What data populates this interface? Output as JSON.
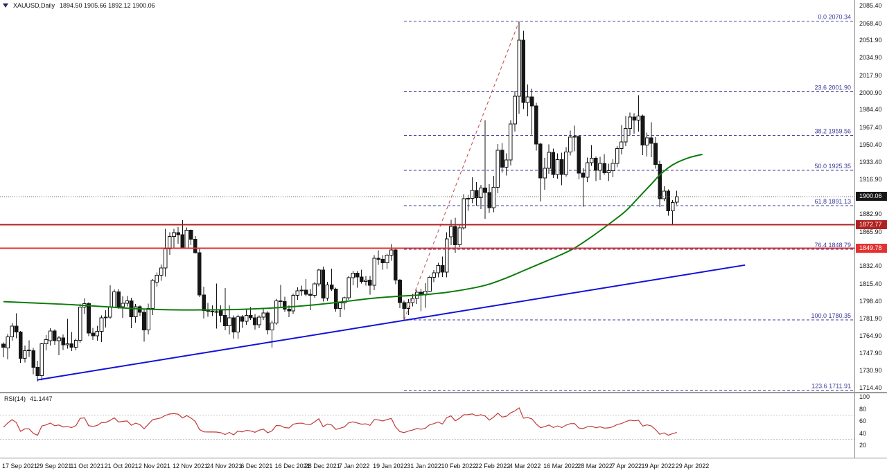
{
  "window": {
    "symbol_label": "XAUUSD,Daily",
    "ohlc_label": "1894.50 1905.66 1892.12 1900.06"
  },
  "colors": {
    "background": "#ffffff",
    "candle_bull": "#ffffff",
    "candle_bear": "#161616",
    "ma": "#0c7c0c",
    "trendline": "#1212d8",
    "fib": "#3b3b9d",
    "fib_base": "#c24d4d",
    "hline_dark_red": "#b02020",
    "hline_red": "#e43030",
    "bid_tag": "#161616",
    "rsi": "#c13a3a"
  },
  "chart_data": {
    "type": "candlestick",
    "symbol": "XAUUSD",
    "timeframe": "Daily",
    "title": "XAUUSD,Daily 1894.50 1905.66 1892.12 1900.06",
    "last_ohlc": {
      "open": "1894.50",
      "high": "1905.66",
      "low": "1892.12",
      "close": "1900.06"
    },
    "y_range": {
      "top": 2090.9,
      "bottom": 1710.3
    },
    "y_axis_labels": [
      "2085.40",
      "2068.40",
      "2051.90",
      "2034.90",
      "2017.90",
      "2000.90",
      "1984.40",
      "1967.40",
      "1950.40",
      "1933.40",
      "1916.90",
      "1882.90",
      "1865.90",
      "1832.40",
      "1815.40",
      "1798.40",
      "1781.90",
      "1764.90",
      "1747.90",
      "1730.90",
      "1714.40"
    ],
    "price_tags": [
      {
        "text": "1900.06",
        "price": 1900.06,
        "bg": "#161616",
        "name": "bid-price-tag"
      },
      {
        "text": "1872.77",
        "price": 1872.77,
        "bg": "#b02020",
        "name": "hline-1872-price-tag"
      },
      {
        "text": "1849.78",
        "price": 1849.78,
        "bg": "#e43030",
        "name": "hline-1849-price-tag"
      }
    ],
    "bid_line": {
      "price": 1900.06
    },
    "h_lines": [
      {
        "price": 1872.77,
        "color": "#b02020",
        "width": 2,
        "name": "horizontal-line-1872"
      },
      {
        "price": 1849.78,
        "color": "#e43030",
        "width": 2,
        "name": "horizontal-line-1849"
      }
    ],
    "fibonacci": {
      "color": "#3b3b9d",
      "base_color": "#c24d4d",
      "start_index": 94,
      "base_line": {
        "from": {
          "index": 94,
          "price": 1780.35
        },
        "to": {
          "index": 121,
          "price": 2070.34
        }
      },
      "levels": [
        {
          "label": "0.0 2070.34",
          "price": 2070.34
        },
        {
          "label": "23.6 2001.90",
          "price": 2001.9
        },
        {
          "label": "38.2 1959.56",
          "price": 1959.56
        },
        {
          "label": "50.0 1925.35",
          "price": 1925.35
        },
        {
          "label": "61.8 1891.13",
          "price": 1891.13
        },
        {
          "label": "76.4 1848.79",
          "price": 1848.79
        },
        {
          "label": "100.0 1780.35",
          "price": 1780.35
        },
        {
          "label": "123.6 1711.91",
          "price": 1711.91
        }
      ]
    },
    "trendline": {
      "color": "#1212d8",
      "from": {
        "index": 8,
        "price": 1722.0
      },
      "to": {
        "index": 174,
        "price": 1833.5
      }
    },
    "ma_line": {
      "color": "#0c7c0c",
      "points": [
        [
          0,
          1798
        ],
        [
          8,
          1796.5
        ],
        [
          16,
          1795
        ],
        [
          24,
          1793
        ],
        [
          32,
          1791
        ],
        [
          40,
          1790
        ],
        [
          48,
          1790
        ],
        [
          56,
          1790.5
        ],
        [
          64,
          1792
        ],
        [
          72,
          1794.5
        ],
        [
          80,
          1798
        ],
        [
          86,
          1801
        ],
        [
          92,
          1803
        ],
        [
          98,
          1804.5
        ],
        [
          104,
          1807
        ],
        [
          110,
          1811
        ],
        [
          114,
          1815
        ],
        [
          118,
          1821
        ],
        [
          122,
          1828
        ],
        [
          126,
          1835
        ],
        [
          130,
          1842
        ],
        [
          134,
          1850
        ],
        [
          138,
          1861
        ],
        [
          142,
          1873
        ],
        [
          146,
          1886
        ],
        [
          149,
          1899
        ],
        [
          152,
          1912
        ],
        [
          154,
          1921
        ],
        [
          156,
          1928
        ],
        [
          158,
          1933
        ],
        [
          161,
          1938
        ],
        [
          164,
          1941
        ]
      ]
    },
    "x_axis_labels": [
      {
        "label": "17 Sep 2021",
        "index": 0
      },
      {
        "label": "29 Sep 2021",
        "index": 8
      },
      {
        "label": "11 Oct 2021",
        "index": 16
      },
      {
        "label": "21 Oct 2021",
        "index": 24
      },
      {
        "label": "2 Nov 2021",
        "index": 32
      },
      {
        "label": "12 Nov 2021",
        "index": 40
      },
      {
        "label": "24 Nov 2021",
        "index": 48
      },
      {
        "label": "6 Dec 2021",
        "index": 56
      },
      {
        "label": "16 Dec 2021",
        "index": 64
      },
      {
        "label": "28 Dec 2021",
        "index": 71
      },
      {
        "label": "7 Jan 2022",
        "index": 79
      },
      {
        "label": "19 Jan 2022",
        "index": 87
      },
      {
        "label": "31 Jan 2022",
        "index": 95
      },
      {
        "label": "10 Feb 2022",
        "index": 103
      },
      {
        "label": "22 Feb 2022",
        "index": 111
      },
      {
        "label": "4 Mar 2022",
        "index": 119
      },
      {
        "label": "16 Mar 2022",
        "index": 127
      },
      {
        "label": "28 Mar 2022",
        "index": 135
      },
      {
        "label": "7 Apr 2022",
        "index": 143
      },
      {
        "label": "19 Apr 2022",
        "index": 150
      },
      {
        "label": "29 Apr 2022",
        "index": 158
      }
    ],
    "candles": [
      [
        1756.8,
        1758.4,
        1743.9,
        1753.6
      ],
      [
        1753.0,
        1766.3,
        1741.8,
        1763.8
      ],
      [
        1763.8,
        1777.1,
        1760.2,
        1774.3
      ],
      [
        1774.3,
        1786.5,
        1762.3,
        1768.4
      ],
      [
        1768.4,
        1769.5,
        1738.5,
        1742.9
      ],
      [
        1742.9,
        1755.3,
        1738.9,
        1750.4
      ],
      [
        1751.0,
        1760.3,
        1744.2,
        1750.2
      ],
      [
        1750.2,
        1752.9,
        1727.4,
        1734.2
      ],
      [
        1734.2,
        1740.5,
        1720.5,
        1726.0
      ],
      [
        1726.0,
        1758.0,
        1721.3,
        1756.9
      ],
      [
        1756.9,
        1765.4,
        1750.8,
        1761.0
      ],
      [
        1760.0,
        1772.0,
        1755.5,
        1769.6
      ],
      [
        1769.6,
        1771.2,
        1756.0,
        1759.9
      ],
      [
        1759.9,
        1764.9,
        1745.9,
        1762.7
      ],
      [
        1762.7,
        1766.1,
        1751.1,
        1755.9
      ],
      [
        1755.9,
        1781.4,
        1752.2,
        1757.1
      ],
      [
        1757.0,
        1768.4,
        1749.9,
        1753.8
      ],
      [
        1753.8,
        1762.0,
        1750.5,
        1760.4
      ],
      [
        1760.4,
        1796.0,
        1758.1,
        1792.8
      ],
      [
        1792.8,
        1801.0,
        1786.0,
        1795.9
      ],
      [
        1795.9,
        1797.4,
        1764.5,
        1767.5
      ],
      [
        1767.5,
        1772.4,
        1760.6,
        1764.8
      ],
      [
        1764.8,
        1774.6,
        1759.9,
        1769.1
      ],
      [
        1769.1,
        1784.5,
        1758.7,
        1782.1
      ],
      [
        1782.1,
        1789.6,
        1772.7,
        1782.9
      ],
      [
        1782.9,
        1813.9,
        1781.1,
        1792.6
      ],
      [
        1792.6,
        1809.8,
        1792.1,
        1807.3
      ],
      [
        1807.3,
        1810.0,
        1791.0,
        1792.9
      ],
      [
        1792.9,
        1803.0,
        1782.1,
        1796.4
      ],
      [
        1796.4,
        1803.5,
        1793.3,
        1798.6
      ],
      [
        1798.6,
        1801.9,
        1772.3,
        1783.3
      ],
      [
        1783.3,
        1795.8,
        1777.6,
        1793.0
      ],
      [
        1793.0,
        1794.3,
        1783.9,
        1787.6
      ],
      [
        1787.6,
        1789.9,
        1759.0,
        1770.5
      ],
      [
        1770.5,
        1795.9,
        1766.1,
        1791.2
      ],
      [
        1791.2,
        1820.0,
        1784.9,
        1818.4
      ],
      [
        1817.0,
        1826.4,
        1812.5,
        1823.7
      ],
      [
        1823.7,
        1834.0,
        1818.2,
        1830.8
      ],
      [
        1830.8,
        1868.6,
        1822.4,
        1849.3
      ],
      [
        1849.3,
        1865.3,
        1843.6,
        1861.4
      ],
      [
        1861.4,
        1868.8,
        1850.1,
        1864.9
      ],
      [
        1864.9,
        1870.2,
        1854.2,
        1862.9
      ],
      [
        1862.9,
        1876.9,
        1849.8,
        1850.3
      ],
      [
        1850.3,
        1870.1,
        1849.9,
        1867.4
      ],
      [
        1867.4,
        1868.0,
        1852.9,
        1858.7
      ],
      [
        1858.7,
        1861.5,
        1844.8,
        1845.4
      ],
      [
        1845.4,
        1849.0,
        1802.4,
        1804.4
      ],
      [
        1804.4,
        1812.5,
        1781.7,
        1789.3
      ],
      [
        1789.3,
        1796.8,
        1783.4,
        1788.8
      ],
      [
        1788.8,
        1794.3,
        1784.0,
        1788.4
      ],
      [
        1788.4,
        1815.6,
        1771.8,
        1788.1
      ],
      [
        1790.0,
        1794.2,
        1778.0,
        1784.6
      ],
      [
        1784.6,
        1811.1,
        1770.2,
        1774.5
      ],
      [
        1774.5,
        1794.5,
        1766.0,
        1782.1
      ],
      [
        1782.1,
        1784.5,
        1762.1,
        1768.4
      ],
      [
        1768.4,
        1785.4,
        1761.9,
        1783.1
      ],
      [
        1783.1,
        1785.0,
        1772.4,
        1778.8
      ],
      [
        1778.8,
        1790.9,
        1775.6,
        1784.5
      ],
      [
        1784.5,
        1792.7,
        1780.2,
        1782.3
      ],
      [
        1782.3,
        1785.8,
        1770.9,
        1775.6
      ],
      [
        1775.6,
        1784.6,
        1772.3,
        1782.9
      ],
      [
        1782.9,
        1791.4,
        1780.1,
        1786.8
      ],
      [
        1786.8,
        1788.6,
        1766.2,
        1770.4
      ],
      [
        1770.4,
        1779.5,
        1753.2,
        1777.1
      ],
      [
        1777.1,
        1800.7,
        1775.5,
        1798.8
      ],
      [
        1798.8,
        1814.2,
        1792.0,
        1798.1
      ],
      [
        1798.1,
        1802.8,
        1787.8,
        1790.5
      ],
      [
        1790.5,
        1794.4,
        1782.8,
        1788.9
      ],
      [
        1788.9,
        1805.9,
        1785.8,
        1804.0
      ],
      [
        1804.0,
        1812.0,
        1799.8,
        1808.5
      ],
      [
        1808.5,
        1813.5,
        1803.7,
        1809.0
      ],
      [
        1809.0,
        1820.0,
        1803.0,
        1805.2
      ],
      [
        1805.2,
        1810.0,
        1789.7,
        1804.1
      ],
      [
        1804.1,
        1817.0,
        1801.9,
        1815.1
      ],
      [
        1815.1,
        1830.0,
        1812.8,
        1828.6
      ],
      [
        1828.6,
        1831.9,
        1798.1,
        1801.5
      ],
      [
        1801.5,
        1817.1,
        1798.6,
        1814.1
      ],
      [
        1814.1,
        1829.9,
        1808.4,
        1810.3
      ],
      [
        1810.3,
        1811.6,
        1788.2,
        1791.4
      ],
      [
        1791.4,
        1798.0,
        1782.8,
        1796.6
      ],
      [
        1796.6,
        1802.9,
        1790.0,
        1801.7
      ],
      [
        1801.7,
        1823.0,
        1799.8,
        1821.1
      ],
      [
        1821.1,
        1828.1,
        1813.9,
        1825.6
      ],
      [
        1825.6,
        1827.5,
        1811.6,
        1821.9
      ],
      [
        1821.9,
        1829.0,
        1815.6,
        1817.4
      ],
      [
        1817.4,
        1822.9,
        1813.5,
        1819.0
      ],
      [
        1819.0,
        1823.1,
        1804.7,
        1813.8
      ],
      [
        1813.8,
        1843.0,
        1809.0,
        1840.2
      ],
      [
        1840.2,
        1847.7,
        1833.7,
        1839.1
      ],
      [
        1839.1,
        1843.1,
        1828.9,
        1835.8
      ],
      [
        1835.8,
        1844.5,
        1829.8,
        1843.0
      ],
      [
        1843.0,
        1853.9,
        1837.8,
        1848.3
      ],
      [
        1848.3,
        1850.0,
        1814.8,
        1818.9
      ],
      [
        1818.9,
        1819.9,
        1791.6,
        1797.0
      ],
      [
        1797.0,
        1799.0,
        1780.4,
        1791.3
      ],
      [
        1791.3,
        1800.3,
        1784.9,
        1797.2
      ],
      [
        1797.2,
        1805.5,
        1793.2,
        1801.1
      ],
      [
        1801.1,
        1809.5,
        1795.6,
        1807.0
      ],
      [
        1807.0,
        1810.5,
        1788.6,
        1804.3
      ],
      [
        1804.3,
        1815.9,
        1792.0,
        1808.3
      ],
      [
        1808.3,
        1823.4,
        1807.5,
        1821.5
      ],
      [
        1821.5,
        1828.5,
        1817.0,
        1826.0
      ],
      [
        1826.0,
        1835.6,
        1821.5,
        1833.0
      ],
      [
        1833.0,
        1841.9,
        1821.8,
        1826.6
      ],
      [
        1826.6,
        1865.4,
        1821.6,
        1858.8
      ],
      [
        1861.0,
        1877.3,
        1853.0,
        1871.0
      ],
      [
        1871.0,
        1879.5,
        1845.4,
        1853.2
      ],
      [
        1853.2,
        1872.5,
        1850.8,
        1869.6
      ],
      [
        1869.6,
        1902.2,
        1867.9,
        1898.0
      ],
      [
        1898.0,
        1901.5,
        1886.2,
        1898.4
      ],
      [
        1898.4,
        1918.9,
        1893.5,
        1906.1
      ],
      [
        1906.1,
        1913.9,
        1891.1,
        1898.9
      ],
      [
        1898.9,
        1911.5,
        1887.9,
        1908.2
      ],
      [
        1908.2,
        1974.3,
        1878.5,
        1903.8
      ],
      [
        1903.8,
        1911.9,
        1884.1,
        1889.3
      ],
      [
        1889.3,
        1920.0,
        1884.8,
        1908.9
      ],
      [
        1908.9,
        1950.9,
        1903.4,
        1944.9
      ],
      [
        1944.9,
        1952.2,
        1923.1,
        1928.5
      ],
      [
        1928.5,
        1941.9,
        1920.5,
        1935.6
      ],
      [
        1935.6,
        1974.1,
        1930.2,
        1970.5
      ],
      [
        1970.5,
        2002.4,
        1963.2,
        1997.4
      ],
      [
        1997.4,
        2070.3,
        1980.2,
        2052.0
      ],
      [
        2052.0,
        2061.0,
        1985.0,
        1991.4
      ],
      [
        1991.4,
        2008.9,
        1977.8,
        1996.9
      ],
      [
        1996.9,
        2004.9,
        1960.1,
        1988.1
      ],
      [
        1988.1,
        1991.0,
        1944.7,
        1951.1
      ],
      [
        1951.1,
        1952.0,
        1895.2,
        1918.0
      ],
      [
        1918.0,
        1937.5,
        1906.5,
        1927.4
      ],
      [
        1927.4,
        1950.8,
        1922.0,
        1942.9
      ],
      [
        1942.9,
        1946.6,
        1918.1,
        1921.6
      ],
      [
        1921.6,
        1941.9,
        1917.5,
        1935.9
      ],
      [
        1935.9,
        1942.6,
        1910.9,
        1921.5
      ],
      [
        1921.5,
        1948.0,
        1919.5,
        1943.2
      ],
      [
        1943.2,
        1964.1,
        1939.9,
        1957.9
      ],
      [
        1957.9,
        1968.7,
        1943.9,
        1958.3
      ],
      [
        1958.3,
        1959.8,
        1916.6,
        1922.9
      ],
      [
        1922.9,
        1927.5,
        1890.1,
        1918.6
      ],
      [
        1918.6,
        1938.0,
        1914.0,
        1932.8
      ],
      [
        1932.8,
        1949.9,
        1930.0,
        1937.2
      ],
      [
        1937.2,
        1938.9,
        1915.1,
        1925.5
      ],
      [
        1925.5,
        1938.5,
        1915.9,
        1932.3
      ],
      [
        1932.3,
        1941.4,
        1921.2,
        1923.1
      ],
      [
        1923.1,
        1932.0,
        1915.0,
        1925.3
      ],
      [
        1925.3,
        1936.1,
        1918.8,
        1932.1
      ],
      [
        1932.1,
        1949.0,
        1928.6,
        1946.6
      ],
      [
        1946.6,
        1969.6,
        1941.0,
        1952.9
      ],
      [
        1952.9,
        1978.2,
        1949.1,
        1966.1
      ],
      [
        1966.1,
        1981.6,
        1959.5,
        1977.2
      ],
      [
        1977.2,
        1981.1,
        1960.8,
        1974.3
      ],
      [
        1974.3,
        1998.4,
        1963.0,
        1978.2
      ],
      [
        1978.2,
        1979.7,
        1940.2,
        1949.9
      ],
      [
        1949.9,
        1962.1,
        1938.9,
        1957.0
      ],
      [
        1957.0,
        1972.3,
        1938.1,
        1951.6
      ],
      [
        1951.6,
        1957.9,
        1927.3,
        1931.3
      ],
      [
        1931.3,
        1935.0,
        1890.0,
        1897.8
      ],
      [
        1897.8,
        1910.1,
        1895.6,
        1905.3
      ],
      [
        1905.3,
        1907.0,
        1881.6,
        1886.1
      ],
      [
        1886.1,
        1896.5,
        1872.1,
        1894.3
      ],
      [
        1894.5,
        1905.66,
        1892.12,
        1900.06
      ]
    ],
    "rsi": {
      "label": "RSI(14)",
      "value_label": "41.1447",
      "period": 14,
      "color": "#c13a3a",
      "levels": [
        70,
        30
      ],
      "axis_labels": [
        "100",
        "80",
        "60",
        "40",
        "20"
      ],
      "scale_top": 105.7
    }
  }
}
